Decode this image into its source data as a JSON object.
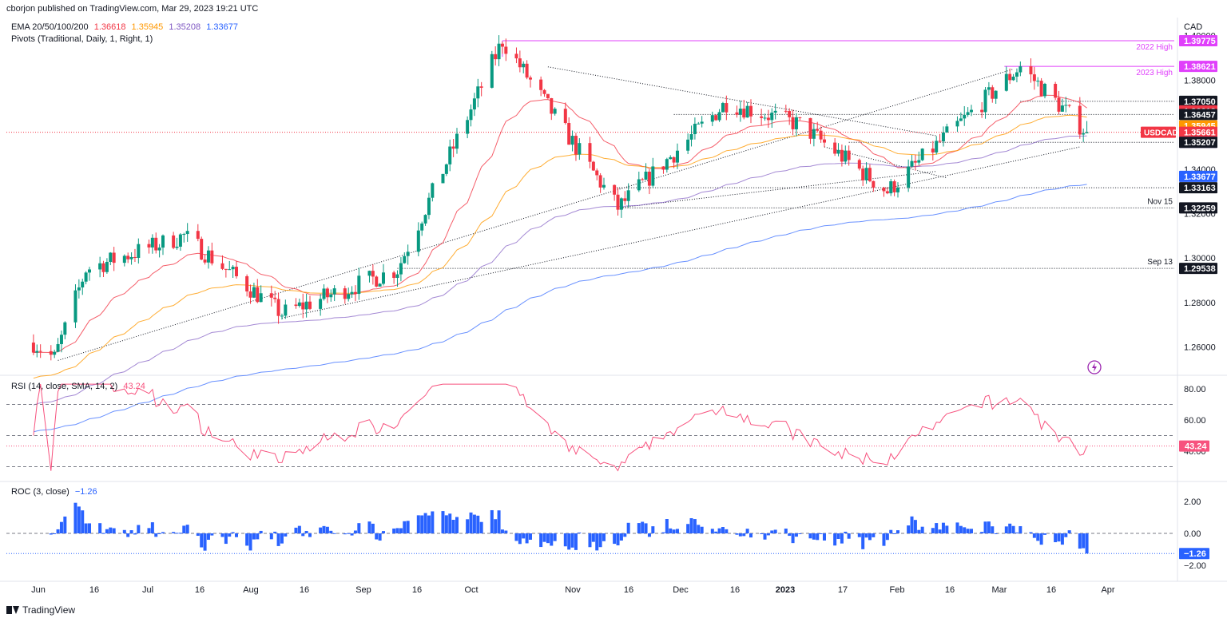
{
  "header": {
    "published": "cborjon published on TradingView.com, Mar 29, 2023 19:21 UTC",
    "currency": "CAD"
  },
  "indicators": {
    "ema_label": "EMA 20/50/100/200",
    "ema_values": [
      "1.36618",
      "1.35945",
      "1.35208",
      "1.33677"
    ],
    "ema_colors": [
      "#f23645",
      "#ff9800",
      "#7e57c2",
      "#2962ff"
    ],
    "pivots_label": "Pivots (Traditional, Daily, 1, Right, 1)",
    "rsi_label": "RSI (14, close, SMA, 14, 2)",
    "rsi_value": "43.24",
    "roc_label": "ROC (3, close)",
    "roc_value": "−1.26"
  },
  "footer": {
    "brand": "TradingView"
  },
  "colors": {
    "up": "#089981",
    "down": "#f23645",
    "rsi": "#f7527e",
    "roc": "#2962ff",
    "pink": "#e040fb"
  },
  "chart_data": [
    {
      "type": "candlestick",
      "symbol": "USDCAD",
      "ylim": [
        1.232,
        1.4
      ],
      "y_ticks": [
        1.24,
        1.26,
        1.28,
        1.3,
        1.32,
        1.34,
        1.36,
        1.38,
        1.4
      ],
      "x_labels": [
        "Jun",
        "16",
        "Jul",
        "16",
        "Aug",
        "16",
        "Sep",
        "16",
        "Oct",
        "Nov",
        "16",
        "Dec",
        "16",
        "2023",
        "17",
        "Feb",
        "16",
        "Mar",
        "16",
        "Apr"
      ],
      "price_tags": [
        {
          "label": "1.39775",
          "color": "#e040fb",
          "text_color": "#ffffff"
        },
        {
          "label": "1.38621",
          "color": "#e040fb",
          "text_color": "#ffffff"
        },
        {
          "label": "1.37050",
          "color": "#131722",
          "text_color": "#ffffff"
        },
        {
          "label": "1.36618",
          "color": "#f23645",
          "text_color": "#ffffff"
        },
        {
          "label": "1.36457",
          "color": "#131722",
          "text_color": "#ffffff"
        },
        {
          "label": "1.35945",
          "color": "#ff9800",
          "text_color": "#ffffff"
        },
        {
          "label": "1.35661",
          "color": "#f23645",
          "text_color": "#ffffff"
        },
        {
          "label": "1.35208",
          "color": "#7e57c2",
          "text_color": "#ffffff"
        },
        {
          "label": "1.35207",
          "color": "#131722",
          "text_color": "#ffffff"
        },
        {
          "label": "1.33677",
          "color": "#2962ff",
          "text_color": "#ffffff"
        },
        {
          "label": "1.33163",
          "color": "#131722",
          "text_color": "#ffffff"
        },
        {
          "label": "1.32259",
          "color": "#131722",
          "text_color": "#ffffff"
        },
        {
          "label": "1.29538",
          "color": "#131722",
          "text_color": "#ffffff"
        }
      ],
      "symbol_tag": "USDCAD",
      "annotations": [
        {
          "text": "2022 High",
          "value": 1.39775
        },
        {
          "text": "2023 High",
          "value": 1.38621
        },
        {
          "text": "Nov 15",
          "value": 1.32259
        },
        {
          "text": "Sep 13",
          "value": 1.29538
        }
      ],
      "key_points": [
        {
          "date": "2022-06-01",
          "close": 1.262
        },
        {
          "date": "2022-06-07",
          "close": 1.255
        },
        {
          "date": "2022-06-16",
          "close": 1.295
        },
        {
          "date": "2022-07-14",
          "close": 1.31
        },
        {
          "date": "2022-08-11",
          "close": 1.275
        },
        {
          "date": "2022-09-13",
          "close": 1.295
        },
        {
          "date": "2022-10-13",
          "close": 1.3977
        },
        {
          "date": "2022-11-15",
          "close": 1.3226
        },
        {
          "date": "2022-12-16",
          "close": 1.37
        },
        {
          "date": "2023-01-06",
          "close": 1.36
        },
        {
          "date": "2023-01-31",
          "close": 1.33
        },
        {
          "date": "2023-03-10",
          "close": 1.3862
        },
        {
          "date": "2023-03-29",
          "close": 1.3566
        }
      ]
    },
    {
      "type": "line",
      "name": "RSI",
      "ylim": [
        20,
        85
      ],
      "y_ticks": [
        40,
        60,
        80
      ],
      "y_tick_labels": [
        "40.00",
        "60.00",
        "80.00"
      ],
      "bands": [
        70,
        50,
        30
      ],
      "last": 43.24
    },
    {
      "type": "bar",
      "name": "ROC",
      "ylim": [
        -2.4,
        2.8
      ],
      "y_ticks": [
        -2,
        0,
        2
      ],
      "y_tick_labels": [
        "−2.00",
        "0.00",
        "2.00"
      ],
      "last": -1.26
    }
  ]
}
